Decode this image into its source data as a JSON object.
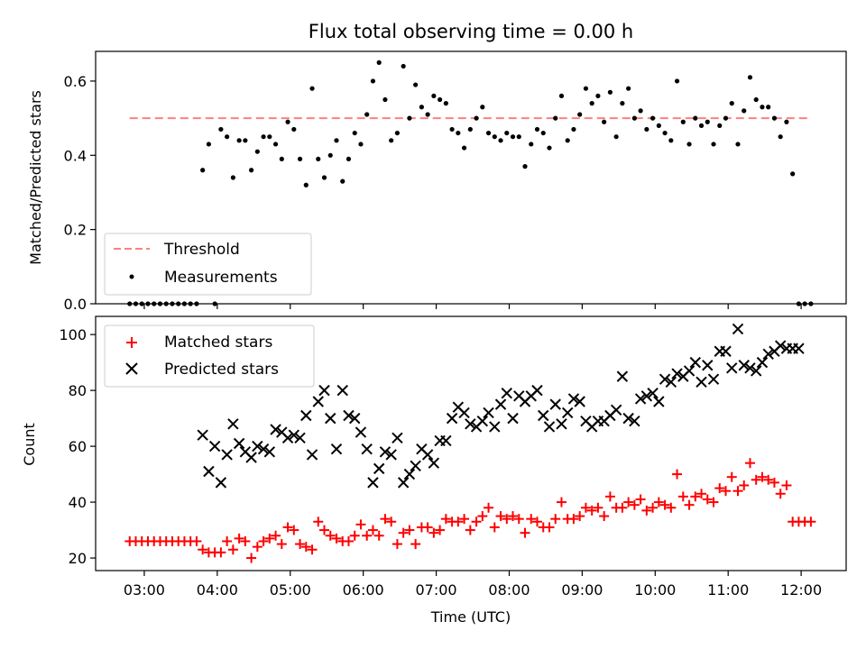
{
  "chart_data": [
    {
      "type": "scatter",
      "title": "Flux total observing time = 0.00 h",
      "ylabel": "Matched/Predicted stars",
      "xlabel": "",
      "xlim": [
        "02:20",
        "12:37"
      ],
      "ylim": [
        0,
        0.68
      ],
      "yticks": [
        0.0,
        0.2,
        0.4,
        0.6
      ],
      "ytick_labels": [
        "0.0",
        "0.2",
        "0.4",
        "0.6"
      ],
      "grid": false,
      "legend": {
        "placement": "lower-left",
        "entries": [
          "Threshold",
          "Measurements"
        ]
      },
      "threshold": {
        "name": "Threshold",
        "value": 0.5,
        "x_range": [
          "02:48",
          "12:08"
        ],
        "color": "#ff7f7f",
        "style": "dashed"
      },
      "series": [
        {
          "name": "Measurements",
          "color": "#000000",
          "marker": "dot",
          "x": [
            "02:48",
            "02:53",
            "02:58",
            "03:03",
            "03:08",
            "03:13",
            "03:18",
            "03:23",
            "03:28",
            "03:33",
            "03:38",
            "03:43",
            "03:48",
            "03:53",
            "03:58",
            "04:03",
            "04:08",
            "04:13",
            "04:18",
            "04:23",
            "04:28",
            "04:33",
            "04:38",
            "04:43",
            "04:48",
            "04:53",
            "04:58",
            "05:03",
            "05:08",
            "05:13",
            "05:18",
            "05:23",
            "05:28",
            "05:33",
            "05:38",
            "05:43",
            "05:48",
            "05:53",
            "05:58",
            "06:03",
            "06:08",
            "06:13",
            "06:18",
            "06:23",
            "06:28",
            "06:33",
            "06:38",
            "06:43",
            "06:48",
            "06:53",
            "06:58",
            "07:03",
            "07:08",
            "07:13",
            "07:18",
            "07:23",
            "07:28",
            "07:33",
            "07:38",
            "07:43",
            "07:48",
            "07:53",
            "07:58",
            "08:03",
            "08:08",
            "08:13",
            "08:18",
            "08:23",
            "08:28",
            "08:33",
            "08:38",
            "08:43",
            "08:48",
            "08:53",
            "08:58",
            "09:03",
            "09:08",
            "09:13",
            "09:18",
            "09:23",
            "09:28",
            "09:33",
            "09:38",
            "09:43",
            "09:48",
            "09:53",
            "09:58",
            "10:03",
            "10:08",
            "10:13",
            "10:18",
            "10:23",
            "10:28",
            "10:33",
            "10:38",
            "10:43",
            "10:48",
            "10:53",
            "10:58",
            "11:03",
            "11:08",
            "11:13",
            "11:18",
            "11:23",
            "11:28",
            "11:33",
            "11:38",
            "11:43",
            "11:48",
            "11:53",
            "11:58",
            "12:03",
            "12:08"
          ],
          "y": [
            0,
            0,
            0,
            0,
            0,
            0,
            0,
            0,
            0,
            0,
            0,
            0,
            0.36,
            0.43,
            0,
            0.47,
            0.45,
            0.34,
            0.44,
            0.44,
            0.36,
            0.41,
            0.45,
            0.45,
            0.43,
            0.39,
            0.49,
            0.47,
            0.39,
            0.32,
            0.58,
            0.39,
            0.34,
            0.4,
            0.44,
            0.33,
            0.39,
            0.46,
            0.43,
            0.51,
            0.6,
            0.65,
            0.55,
            0.44,
            0.46,
            0.64,
            0.5,
            0.59,
            0.53,
            0.51,
            0.56,
            0.55,
            0.54,
            0.47,
            0.46,
            0.42,
            0.47,
            0.5,
            0.53,
            0.46,
            0.45,
            0.44,
            0.46,
            0.45,
            0.45,
            0.37,
            0.43,
            0.47,
            0.46,
            0.42,
            0.5,
            0.56,
            0.44,
            0.47,
            0.51,
            0.58,
            0.54,
            0.56,
            0.49,
            0.57,
            0.45,
            0.54,
            0.58,
            0.5,
            0.52,
            0.47,
            0.5,
            0.48,
            0.46,
            0.44,
            0.6,
            0.49,
            0.43,
            0.5,
            0.48,
            0.49,
            0.43,
            0.48,
            0.5,
            0.54,
            0.43,
            0.52,
            0.61,
            0.55,
            0.53,
            0.53,
            0.5,
            0.45,
            0.49,
            0.35,
            0,
            0,
            0
          ]
        }
      ]
    },
    {
      "type": "scatter",
      "title": "",
      "ylabel": "Count",
      "xlabel": "Time (UTC)",
      "xlim": [
        "02:20",
        "12:37"
      ],
      "ylim": [
        15.5,
        106.5
      ],
      "yticks": [
        20,
        40,
        60,
        80,
        100
      ],
      "ytick_labels": [
        "20",
        "40",
        "60",
        "80",
        "100"
      ],
      "xticks": [
        "03:00",
        "04:00",
        "05:00",
        "06:00",
        "07:00",
        "08:00",
        "09:00",
        "10:00",
        "11:00",
        "12:00"
      ],
      "xtick_labels": [
        "03:00",
        "04:00",
        "05:00",
        "06:00",
        "07:00",
        "08:00",
        "09:00",
        "10:00",
        "11:00",
        "12:00"
      ],
      "grid": false,
      "legend": {
        "placement": "upper-left",
        "entries": [
          "Matched stars",
          "Predicted stars"
        ]
      },
      "series": [
        {
          "name": "Matched stars",
          "color": "#ff0000",
          "marker": "plus",
          "x": [
            "02:48",
            "02:53",
            "02:58",
            "03:03",
            "03:08",
            "03:13",
            "03:18",
            "03:23",
            "03:28",
            "03:33",
            "03:38",
            "03:43",
            "03:48",
            "03:53",
            "03:58",
            "04:03",
            "04:08",
            "04:13",
            "04:18",
            "04:23",
            "04:28",
            "04:33",
            "04:38",
            "04:43",
            "04:48",
            "04:53",
            "04:58",
            "05:03",
            "05:08",
            "05:13",
            "05:18",
            "05:23",
            "05:28",
            "05:33",
            "05:38",
            "05:43",
            "05:48",
            "05:53",
            "05:58",
            "06:03",
            "06:08",
            "06:13",
            "06:18",
            "06:23",
            "06:28",
            "06:33",
            "06:38",
            "06:43",
            "06:48",
            "06:53",
            "06:58",
            "07:03",
            "07:08",
            "07:13",
            "07:18",
            "07:23",
            "07:28",
            "07:33",
            "07:38",
            "07:43",
            "07:48",
            "07:53",
            "07:58",
            "08:03",
            "08:08",
            "08:13",
            "08:18",
            "08:23",
            "08:28",
            "08:33",
            "08:38",
            "08:43",
            "08:48",
            "08:53",
            "08:58",
            "09:03",
            "09:08",
            "09:13",
            "09:18",
            "09:23",
            "09:28",
            "09:33",
            "09:38",
            "09:43",
            "09:48",
            "09:53",
            "09:58",
            "10:03",
            "10:08",
            "10:13",
            "10:18",
            "10:23",
            "10:28",
            "10:33",
            "10:38",
            "10:43",
            "10:48",
            "10:53",
            "10:58",
            "11:03",
            "11:08",
            "11:13",
            "11:18",
            "11:23",
            "11:28",
            "11:33",
            "11:38",
            "11:43",
            "11:48",
            "11:53",
            "11:58",
            "12:03",
            "12:08"
          ],
          "y": [
            26,
            26,
            26,
            26,
            26,
            26,
            26,
            26,
            26,
            26,
            26,
            26,
            23,
            22,
            22,
            22,
            26,
            23,
            27,
            26,
            20,
            24,
            26,
            27,
            28,
            25,
            31,
            30,
            25,
            24,
            23,
            33,
            30,
            28,
            27,
            26,
            26,
            28,
            32,
            28,
            30,
            28,
            34,
            33,
            25,
            29,
            30,
            25,
            31,
            31,
            29,
            30,
            34,
            33,
            33,
            34,
            30,
            33,
            35,
            38,
            31,
            35,
            34,
            35,
            34,
            29,
            34,
            33,
            31,
            31,
            34,
            40,
            34,
            34,
            35,
            38,
            37,
            38,
            35,
            42,
            38,
            38,
            40,
            39,
            41,
            37,
            38,
            40,
            39,
            38,
            50,
            42,
            39,
            42,
            43,
            41,
            40,
            45,
            44,
            49,
            44,
            46,
            54,
            48,
            49,
            48,
            47,
            43,
            46,
            33,
            33,
            33,
            33
          ]
        },
        {
          "name": "Predicted stars",
          "color": "#000000",
          "marker": "x",
          "x": [
            "03:48",
            "03:53",
            "03:58",
            "04:03",
            "04:08",
            "04:13",
            "04:18",
            "04:23",
            "04:28",
            "04:33",
            "04:38",
            "04:43",
            "04:48",
            "04:53",
            "04:58",
            "05:03",
            "05:08",
            "05:13",
            "05:18",
            "05:23",
            "05:28",
            "05:33",
            "05:38",
            "05:43",
            "05:48",
            "05:53",
            "05:58",
            "06:03",
            "06:08",
            "06:13",
            "06:18",
            "06:23",
            "06:28",
            "06:33",
            "06:38",
            "06:43",
            "06:48",
            "06:53",
            "06:58",
            "07:03",
            "07:08",
            "07:13",
            "07:18",
            "07:23",
            "07:28",
            "07:33",
            "07:38",
            "07:43",
            "07:48",
            "07:53",
            "07:58",
            "08:03",
            "08:08",
            "08:13",
            "08:18",
            "08:23",
            "08:28",
            "08:33",
            "08:38",
            "08:43",
            "08:48",
            "08:53",
            "08:58",
            "09:03",
            "09:08",
            "09:13",
            "09:18",
            "09:23",
            "09:28",
            "09:33",
            "09:38",
            "09:43",
            "09:48",
            "09:53",
            "09:58",
            "10:03",
            "10:08",
            "10:13",
            "10:18",
            "10:23",
            "10:28",
            "10:33",
            "10:38",
            "10:43",
            "10:48",
            "10:53",
            "10:58",
            "11:03",
            "11:08",
            "11:13",
            "11:18",
            "11:23",
            "11:28",
            "11:33",
            "11:38",
            "11:43",
            "11:48",
            "11:53",
            "11:58"
          ],
          "y": [
            64,
            51,
            60,
            47,
            57,
            68,
            61,
            58,
            56,
            60,
            59,
            58,
            66,
            65,
            63,
            64,
            63,
            71,
            57,
            76,
            80,
            70,
            59,
            80,
            71,
            70,
            65,
            59,
            47,
            52,
            58,
            57,
            63,
            47,
            50,
            53,
            59,
            57,
            54,
            62,
            62,
            70,
            74,
            72,
            68,
            67,
            69,
            72,
            67,
            75,
            79,
            70,
            78,
            76,
            78,
            80,
            71,
            67,
            75,
            68,
            72,
            77,
            76,
            69,
            67,
            69,
            69,
            71,
            73,
            85,
            70,
            69,
            77,
            78,
            79,
            76,
            84,
            83,
            86,
            85,
            87,
            90,
            83,
            89,
            84,
            94,
            94,
            88,
            102,
            89,
            88,
            87,
            90,
            93,
            94,
            96,
            95,
            95,
            95
          ]
        }
      ]
    }
  ]
}
